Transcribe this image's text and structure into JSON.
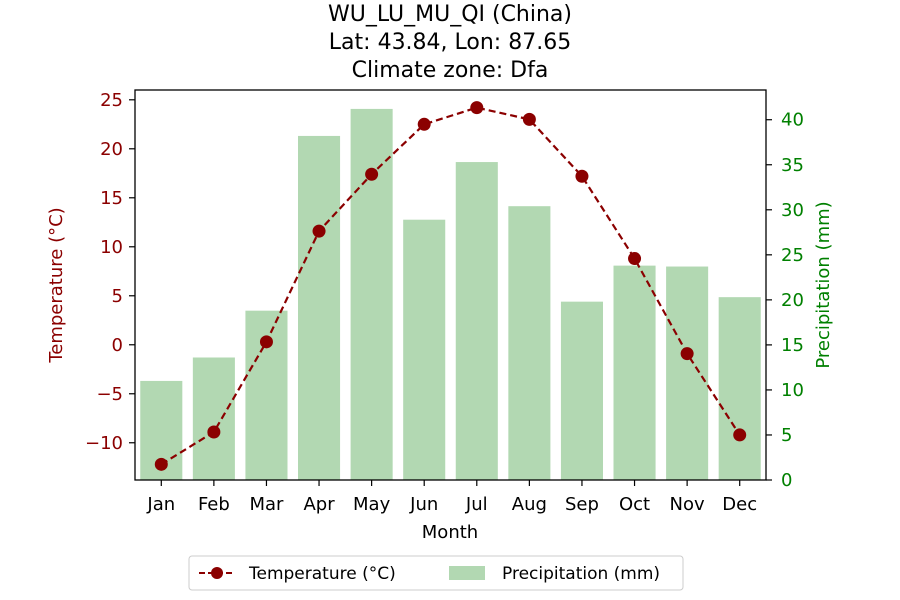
{
  "chart_data": {
    "type": "bar+line",
    "title_lines": [
      "WU_LU_MU_QI (China)",
      "Lat: 43.84, Lon: 87.65",
      "Climate zone: Dfa"
    ],
    "xlabel": "Month",
    "categories": [
      "Jan",
      "Feb",
      "Mar",
      "Apr",
      "May",
      "Jun",
      "Jul",
      "Aug",
      "Sep",
      "Oct",
      "Nov",
      "Dec"
    ],
    "temperature": {
      "name": "Temperature (°C)",
      "axis_label": "Temperature (°C)",
      "values": [
        -12.2,
        -8.9,
        0.3,
        11.6,
        17.4,
        22.5,
        24.2,
        23.0,
        17.2,
        8.8,
        -0.9,
        -9.2
      ],
      "ylim": [
        -13.8,
        26.0
      ],
      "ticks": [
        -10,
        -5,
        0,
        5,
        10,
        15,
        20,
        25
      ],
      "tick_labels": [
        "−10",
        "−5",
        "0",
        "5",
        "10",
        "15",
        "20",
        "25"
      ],
      "color": "#8b0000"
    },
    "precipitation": {
      "name": "Precipitation (mm)",
      "axis_label": "Precipitation (mm)",
      "values": [
        11.0,
        13.6,
        18.8,
        38.2,
        41.2,
        28.9,
        35.3,
        30.4,
        19.8,
        23.8,
        23.7,
        20.3
      ],
      "ylim": [
        0,
        43.3
      ],
      "ticks": [
        0,
        5,
        10,
        15,
        20,
        25,
        30,
        35,
        40
      ],
      "tick_labels": [
        "0",
        "5",
        "10",
        "15",
        "20",
        "25",
        "30",
        "35",
        "40"
      ],
      "color": "#008000",
      "bar_color": "#b2d8b2"
    },
    "legend": {
      "placement": "bottom-center",
      "entries": [
        "Temperature (°C)",
        "Precipitation (mm)"
      ]
    },
    "grid": false
  }
}
